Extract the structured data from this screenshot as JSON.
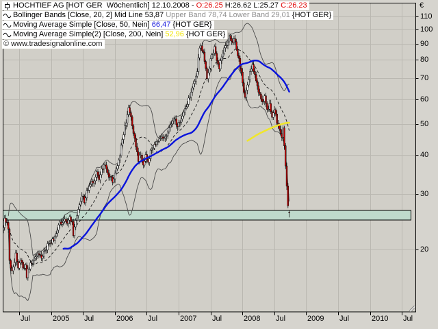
{
  "legend": {
    "rows": [
      {
        "icon": "candlestick-icon",
        "parts": [
          {
            "text": "HOCHTIEF AG [HOT GER  Wöchentlich] 12.10.2008 - ",
            "color": "#000000"
          },
          {
            "text": "O:26.25",
            "color": "#e00000"
          },
          {
            "text": " H:26.62 L:25.27 ",
            "color": "#000000"
          },
          {
            "text": "C:26.23",
            "color": "#e00000"
          }
        ]
      },
      {
        "icon": "wave-icon",
        "parts": [
          {
            "text": "Bollinger Bands [Close, 20, 2] Mid Line 53,87 ",
            "color": "#000000"
          },
          {
            "text": "Upper Band 78,74 Lower Band 29,01",
            "color": "#8f8f8f"
          },
          {
            "text": " {HOT GER}",
            "color": "#000000"
          }
        ]
      },
      {
        "icon": "wave-icon",
        "parts": [
          {
            "text": "Moving Average Simple [Close, 50, Nein] ",
            "color": "#000000"
          },
          {
            "text": "66,47",
            "color": "#2222dd"
          },
          {
            "text": " {HOT GER}",
            "color": "#000000"
          }
        ]
      },
      {
        "icon": "wave-icon",
        "parts": [
          {
            "text": "Moving Average Simple(2) [Close, 200, Nein] ",
            "color": "#000000"
          },
          {
            "text": "52,96",
            "color": "#f0e400"
          },
          {
            "text": " {HOT GER}",
            "color": "#000000"
          }
        ]
      }
    ],
    "copyright": "© www.tradesignalonline.com"
  },
  "chart_data": {
    "type": "candlestick",
    "instrument": "HOCHTIEF AG",
    "symbol": "HOT GER",
    "interval": "Wöchentlich",
    "quote_date": "12.10.2008",
    "last_bar": {
      "open": 26.25,
      "high": 26.62,
      "low": 25.27,
      "close": 26.23
    },
    "indicators": {
      "bollinger": {
        "source": "Close",
        "period": 20,
        "mult": 2,
        "mid": 53.87,
        "upper": 78.74,
        "lower": 29.01
      },
      "sma50": {
        "source": "Close",
        "period": 50,
        "value": 66.47
      },
      "sma200": {
        "source": "Close",
        "period": 200,
        "value": 52.96
      }
    },
    "y_axis": {
      "label": "€",
      "scale": "log",
      "ticks": [
        110,
        100,
        90,
        80,
        70,
        60,
        50,
        40,
        30,
        20
      ]
    },
    "x_axis": {
      "ticks": [
        {
          "label": "Jul",
          "week": 12.8
        },
        {
          "label": "2005",
          "week": 38.8
        },
        {
          "label": "Jul",
          "week": 64.8
        },
        {
          "label": "2006",
          "week": 90.8
        },
        {
          "label": "Jul",
          "week": 116.8
        },
        {
          "label": "2007",
          "week": 142.8
        },
        {
          "label": "Jul",
          "week": 168.8
        },
        {
          "label": "2008",
          "week": 194.8
        },
        {
          "label": "Jul",
          "week": 220.8
        },
        {
          "label": "2009",
          "week": 246.8
        },
        {
          "label": "Jul",
          "week": 272.8
        },
        {
          "label": "2010",
          "week": 298.8
        },
        {
          "label": "Jul",
          "week": 324.8
        }
      ]
    },
    "support_zone": {
      "price_top": 26.6,
      "price_bottom": 24.8
    },
    "weekly_close_anchors": [
      [
        0,
        23.5
      ],
      [
        1,
        25.2
      ],
      [
        3,
        24.3
      ],
      [
        4,
        23.6
      ],
      [
        5,
        18.4
      ],
      [
        7,
        16.9
      ],
      [
        9,
        18.0
      ],
      [
        10,
        19.6
      ],
      [
        12,
        17.2
      ],
      [
        14,
        18.8
      ],
      [
        16,
        17.5
      ],
      [
        18,
        17.9
      ],
      [
        19,
        16.5
      ],
      [
        21,
        17.6
      ],
      [
        24,
        18.3
      ],
      [
        28,
        19.4
      ],
      [
        32,
        19.0
      ],
      [
        36,
        20.6
      ],
      [
        40,
        21.2
      ],
      [
        44,
        23.2
      ],
      [
        46,
        24.6
      ],
      [
        48,
        24.0
      ],
      [
        50,
        25.2
      ],
      [
        52,
        23.8
      ],
      [
        54,
        25.3
      ],
      [
        56,
        24.2
      ],
      [
        57,
        22.4
      ],
      [
        58,
        23.6
      ],
      [
        60,
        25.8
      ],
      [
        62,
        27.4
      ],
      [
        64,
        29.5
      ],
      [
        66,
        28.6
      ],
      [
        68,
        30.5
      ],
      [
        72,
        32.4
      ],
      [
        76,
        34.8
      ],
      [
        78,
        33.6
      ],
      [
        82,
        37.5
      ],
      [
        86,
        34.5
      ],
      [
        89,
        32.8
      ],
      [
        92,
        36.5
      ],
      [
        94,
        38.5
      ],
      [
        98,
        46.0
      ],
      [
        102,
        56.5
      ],
      [
        104,
        52.0
      ],
      [
        106,
        47.0
      ],
      [
        108,
        42.0
      ],
      [
        110,
        38.5
      ],
      [
        112,
        40.5
      ],
      [
        114,
        37.2
      ],
      [
        116,
        39.5
      ],
      [
        118,
        38.0
      ],
      [
        120,
        41.0
      ],
      [
        124,
        43.5
      ],
      [
        128,
        46.0
      ],
      [
        132,
        45.0
      ],
      [
        136,
        49.5
      ],
      [
        140,
        52.5
      ],
      [
        142,
        48.5
      ],
      [
        144,
        51.5
      ],
      [
        148,
        56.0
      ],
      [
        152,
        61.0
      ],
      [
        156,
        68.0
      ],
      [
        158,
        74.0
      ],
      [
        160,
        86.0
      ],
      [
        161,
        88.5
      ],
      [
        163,
        84.0
      ],
      [
        165,
        74.0
      ],
      [
        166,
        70.5
      ],
      [
        168,
        76.0
      ],
      [
        170,
        83.0
      ],
      [
        172,
        87.0
      ],
      [
        174,
        80.0
      ],
      [
        176,
        75.5
      ],
      [
        178,
        81.0
      ],
      [
        180,
        86.0
      ],
      [
        182,
        90.0
      ],
      [
        184,
        93.5
      ],
      [
        186,
        91.5
      ],
      [
        188,
        93.0
      ],
      [
        190,
        87.0
      ],
      [
        192,
        80.0
      ],
      [
        194,
        72.0
      ],
      [
        196,
        64.0
      ],
      [
        197,
        60.0
      ],
      [
        199,
        67.0
      ],
      [
        201,
        73.0
      ],
      [
        203,
        76.0
      ],
      [
        205,
        72.0
      ],
      [
        207,
        66.5
      ],
      [
        209,
        62.0
      ],
      [
        211,
        58.0
      ],
      [
        213,
        61.0
      ],
      [
        215,
        55.0
      ],
      [
        217,
        58.5
      ],
      [
        219,
        53.0
      ],
      [
        221,
        55.5
      ],
      [
        223,
        51.0
      ],
      [
        225,
        49.0
      ],
      [
        227,
        46.0
      ],
      [
        228,
        48.0
      ],
      [
        229,
        42.0
      ],
      [
        230,
        37.0
      ],
      [
        231,
        31.5
      ],
      [
        232,
        28.0
      ],
      [
        233,
        26.23
      ]
    ],
    "colors": {
      "plot_bg": "#d1cfc8",
      "window_bg": "#d6d4ce",
      "grid": "#bab8b1",
      "frame": "#000000",
      "candle_up_fill": "#ffffff",
      "candle_down_fill": "#c40000",
      "candle_outline": "#000000",
      "bollinger_band": "#4a4a4a",
      "bollinger_mid": "#141414",
      "sma50_line": "#0a14dc",
      "sma200_line": "#f0e62c",
      "support_zone_fill": "#bfdacc",
      "support_zone_border": "#000000"
    }
  }
}
